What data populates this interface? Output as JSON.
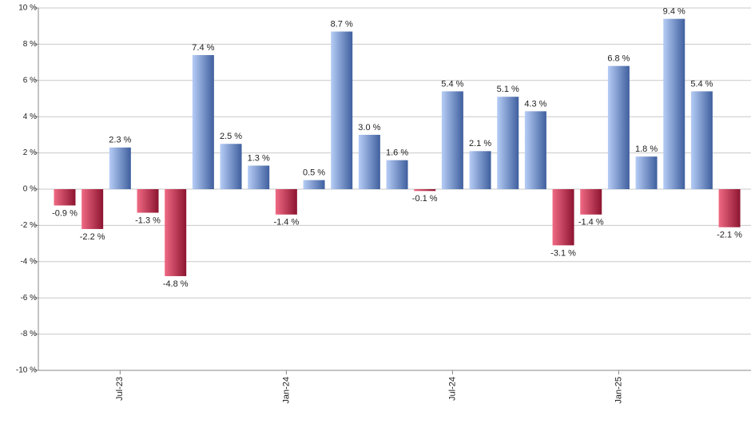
{
  "chart_data": {
    "type": "bar",
    "categories": [
      null,
      null,
      "Jul-23",
      null,
      null,
      null,
      null,
      null,
      "Jan-24",
      null,
      null,
      null,
      null,
      null,
      "Jul-24",
      null,
      null,
      null,
      null,
      null,
      "Jan-25",
      null,
      null,
      null,
      null
    ],
    "values": [
      -0.9,
      -2.2,
      2.3,
      -1.3,
      -4.8,
      7.4,
      2.5,
      1.3,
      -1.4,
      0.5,
      8.7,
      3.0,
      1.6,
      -0.1,
      5.4,
      2.1,
      5.1,
      4.3,
      -3.1,
      -1.4,
      6.8,
      1.8,
      9.4,
      5.4,
      -2.1
    ],
    "value_labels": [
      "-0.9 %",
      "-2.2 %",
      "2.3 %",
      "-1.3 %",
      "-4.8 %",
      "7.4 %",
      "2.5 %",
      "1.3 %",
      "-1.4 %",
      "0.5 %",
      "8.7 %",
      "3.0 %",
      "1.6 %",
      "-0.1 %",
      "5.4 %",
      "2.1 %",
      "5.1 %",
      "4.3 %",
      "-3.1 %",
      "-1.4 %",
      "6.8 %",
      "1.8 %",
      "9.4 %",
      "5.4 %",
      "-2.1 %"
    ],
    "positive_colors": [
      "#b6cdf6",
      "#3f5f9e"
    ],
    "negative_colors": [
      "#f06a84",
      "#8c1430"
    ],
    "ylim": [
      -10,
      10
    ],
    "yticks": [
      {
        "value": -10,
        "label": "-10 %"
      },
      {
        "value": -8,
        "label": "-8 %"
      },
      {
        "value": -6,
        "label": "-6 %"
      },
      {
        "value": -4,
        "label": "-4 %"
      },
      {
        "value": -2,
        "label": "-2 %"
      },
      {
        "value": 0,
        "label": "0 %"
      },
      {
        "value": 2,
        "label": "2 %"
      },
      {
        "value": 4,
        "label": "4 %"
      },
      {
        "value": 6,
        "label": "6 %"
      },
      {
        "value": 8,
        "label": "8 %"
      },
      {
        "value": 10,
        "label": "10 %"
      }
    ],
    "grid": true
  }
}
